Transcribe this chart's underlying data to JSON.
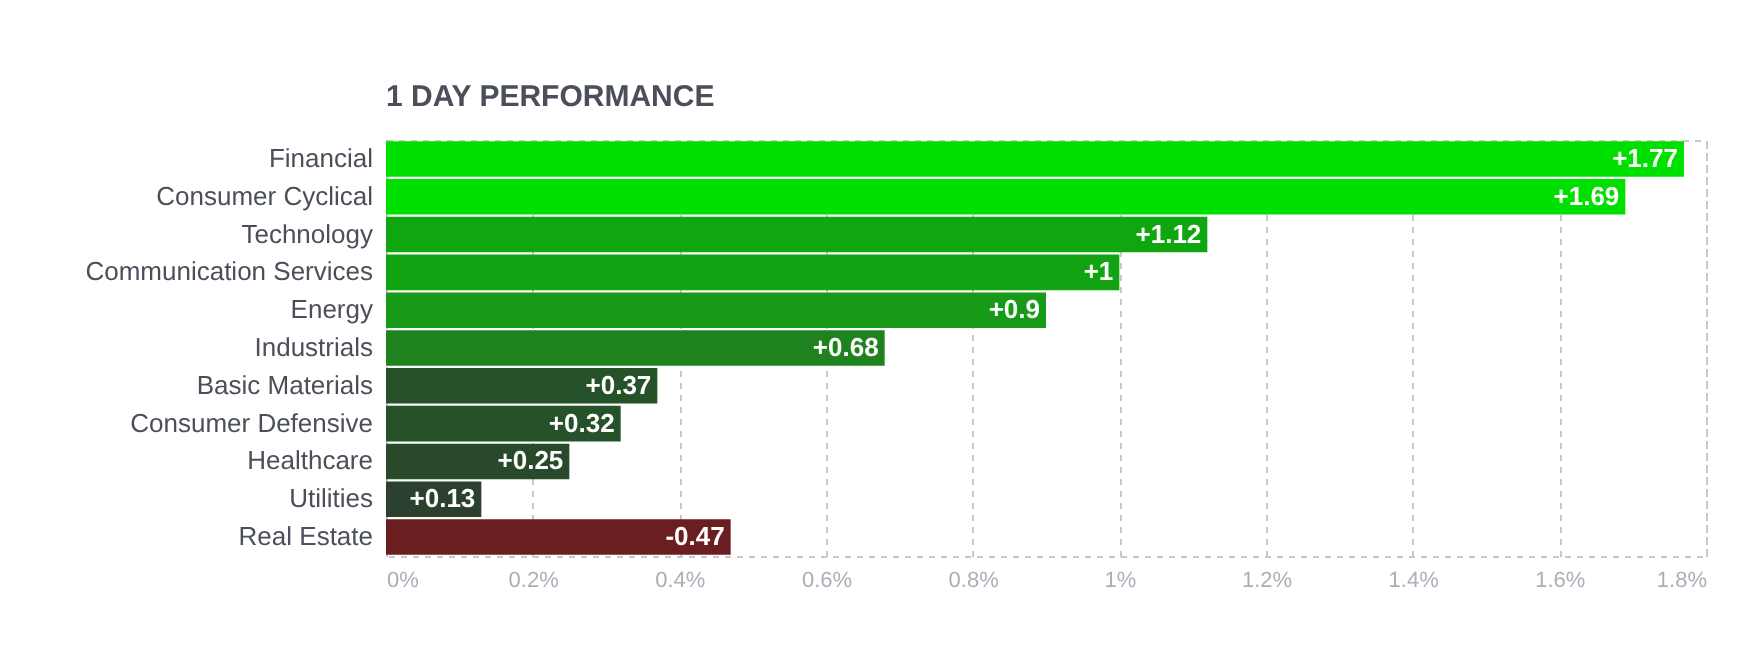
{
  "chart_data": {
    "type": "bar",
    "orientation": "horizontal",
    "title": "1 DAY PERFORMANCE",
    "categories": [
      "Financial",
      "Consumer Cyclical",
      "Technology",
      "Communication Services",
      "Energy",
      "Industrials",
      "Basic Materials",
      "Consumer Defensive",
      "Healthcare",
      "Utilities",
      "Real Estate"
    ],
    "values": [
      1.77,
      1.69,
      1.12,
      1,
      0.9,
      0.68,
      0.37,
      0.32,
      0.25,
      0.13,
      -0.47
    ],
    "base": [
      0,
      0,
      0,
      0,
      0,
      0,
      0,
      0,
      0,
      0,
      0.47
    ],
    "value_labels": [
      "+1.77",
      "+1.69",
      "+1.12",
      "+1",
      "+0.9",
      "+0.68",
      "+0.37",
      "+0.32",
      "+0.25",
      "+0.13",
      "-0.47"
    ],
    "colors": [
      "#00e000",
      "#00e000",
      "#10a610",
      "#12a312",
      "#179a17",
      "#1e821e",
      "#26522a",
      "#26522a",
      "#294a2a",
      "#2c402e",
      "#6b1e20"
    ],
    "xlim": [
      0,
      1.8
    ],
    "xticks": [
      {
        "value": 0,
        "label": "0%"
      },
      {
        "value": 0.2,
        "label": "0.2%"
      },
      {
        "value": 0.4,
        "label": "0.4%"
      },
      {
        "value": 0.6,
        "label": "0.6%"
      },
      {
        "value": 0.8,
        "label": "0.8%"
      },
      {
        "value": 1,
        "label": "1%"
      },
      {
        "value": 1.2,
        "label": "1.2%"
      },
      {
        "value": 1.4,
        "label": "1.4%"
      },
      {
        "value": 1.6,
        "label": "1.6%"
      },
      {
        "value": 1.8,
        "label": "1.8%"
      }
    ],
    "grid": "x",
    "legend": false
  }
}
